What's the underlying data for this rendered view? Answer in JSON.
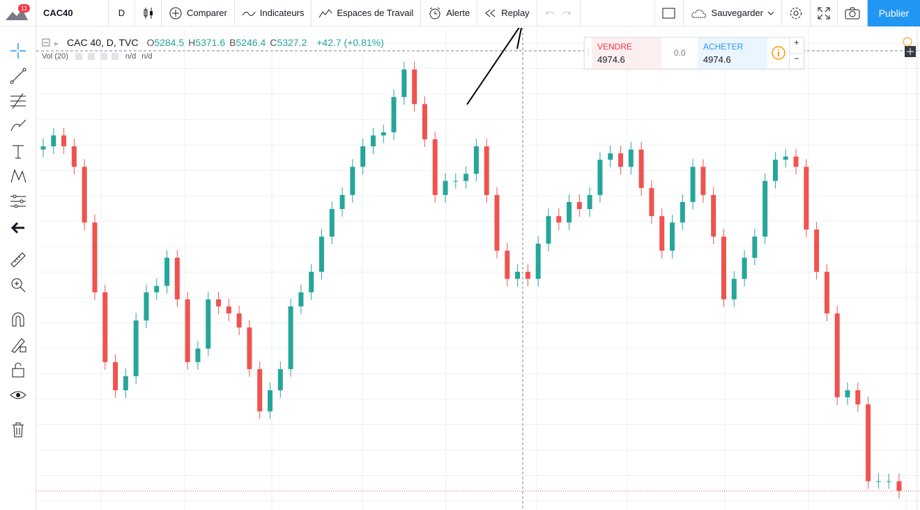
{
  "toolbar": {
    "badge": "11",
    "symbol": "CAC40",
    "interval": "D",
    "buttons": [
      "Comparer",
      "Indicateurs",
      "Espaces de Travail",
      "Alerte",
      "Replay"
    ],
    "save": "Sauvegarder",
    "publish": "Publier"
  },
  "legend": {
    "symbol": "CAC 40, D, TVC",
    "ohlc": [
      {
        "label": "O",
        "value": "5284.5"
      },
      {
        "label": "H",
        "value": "5371.6"
      },
      {
        "label": "B",
        "value": "5246.4"
      },
      {
        "label": "C",
        "value": "5327.2"
      }
    ],
    "change": "+42.7 (+0.81%)",
    "volume": "Vol (20)",
    "volume_values": [
      "n/d",
      "n/d"
    ]
  },
  "trade": {
    "sell_label": "VENDRE",
    "sell_price": "4974.6",
    "spread": "0.0",
    "buy_label": "ACHETER",
    "buy_price": "4974.6"
  },
  "chart_data": {
    "type": "candlestick",
    "up_color": "#26a69a",
    "down_color": "#ef5350",
    "ylim": [
      4945,
      5698
    ],
    "bid": 4974.6,
    "open": [
      5508,
      5513,
      5530,
      5513,
      5481,
      5394,
      5285,
      5176,
      5132,
      5154,
      5241,
      5285,
      5295,
      5339,
      5274,
      5176,
      5197,
      5274,
      5263,
      5252,
      5230,
      5165,
      5099,
      5132,
      5165,
      5263,
      5285,
      5317,
      5372,
      5415,
      5437,
      5481,
      5513,
      5530,
      5535,
      5590,
      5633,
      5579,
      5524,
      5437,
      5459,
      5459,
      5470,
      5513,
      5437,
      5350,
      5306,
      5317,
      5306,
      5361,
      5404,
      5394,
      5426,
      5415,
      5437,
      5492,
      5502,
      5481,
      5508,
      5448,
      5404,
      5350,
      5394,
      5426,
      5481,
      5437,
      5372,
      5274,
      5306,
      5339,
      5372,
      5459,
      5492,
      5497,
      5481,
      5383,
      5317,
      5252,
      5121,
      5132,
      5110,
      4990,
      4990,
      4990
    ],
    "high": [
      5525,
      5542,
      5542,
      5525,
      5493,
      5406,
      5297,
      5188,
      5166,
      5253,
      5297,
      5307,
      5351,
      5351,
      5286,
      5209,
      5286,
      5286,
      5275,
      5264,
      5242,
      5177,
      5144,
      5177,
      5275,
      5297,
      5329,
      5384,
      5427,
      5449,
      5493,
      5525,
      5542,
      5547,
      5602,
      5645,
      5645,
      5591,
      5536,
      5471,
      5471,
      5482,
      5525,
      5525,
      5449,
      5362,
      5329,
      5329,
      5373,
      5416,
      5416,
      5438,
      5438,
      5449,
      5504,
      5514,
      5514,
      5520,
      5520,
      5460,
      5416,
      5406,
      5438,
      5493,
      5493,
      5449,
      5384,
      5318,
      5351,
      5384,
      5471,
      5504,
      5509,
      5509,
      5493,
      5395,
      5329,
      5264,
      5144,
      5144,
      5122,
      5002,
      5002,
      5002
    ],
    "low": [
      5496,
      5501,
      5501,
      5469,
      5382,
      5273,
      5164,
      5120,
      5120,
      5142,
      5229,
      5273,
      5283,
      5262,
      5164,
      5164,
      5185,
      5251,
      5240,
      5218,
      5153,
      5087,
      5087,
      5120,
      5153,
      5251,
      5273,
      5305,
      5360,
      5403,
      5425,
      5469,
      5501,
      5518,
      5523,
      5578,
      5567,
      5512,
      5425,
      5425,
      5447,
      5447,
      5458,
      5425,
      5338,
      5294,
      5294,
      5294,
      5294,
      5349,
      5382,
      5382,
      5403,
      5403,
      5425,
      5480,
      5469,
      5469,
      5436,
      5392,
      5338,
      5338,
      5382,
      5414,
      5425,
      5360,
      5262,
      5262,
      5294,
      5327,
      5360,
      5447,
      5480,
      5469,
      5371,
      5305,
      5240,
      5109,
      5109,
      5098,
      4978,
      4978,
      4978,
      4963
    ],
    "close": [
      5513,
      5530,
      5513,
      5481,
      5394,
      5285,
      5176,
      5132,
      5154,
      5241,
      5285,
      5295,
      5339,
      5274,
      5176,
      5197,
      5274,
      5263,
      5252,
      5230,
      5165,
      5099,
      5132,
      5165,
      5263,
      5285,
      5317,
      5372,
      5415,
      5437,
      5481,
      5513,
      5530,
      5535,
      5590,
      5633,
      5579,
      5524,
      5437,
      5459,
      5459,
      5470,
      5513,
      5437,
      5350,
      5306,
      5317,
      5306,
      5361,
      5404,
      5394,
      5426,
      5415,
      5437,
      5492,
      5502,
      5481,
      5508,
      5448,
      5404,
      5350,
      5394,
      5426,
      5481,
      5437,
      5372,
      5274,
      5306,
      5339,
      5372,
      5459,
      5492,
      5497,
      5481,
      5383,
      5317,
      5252,
      5121,
      5132,
      5110,
      4990,
      4990,
      4990,
      4975
    ]
  }
}
